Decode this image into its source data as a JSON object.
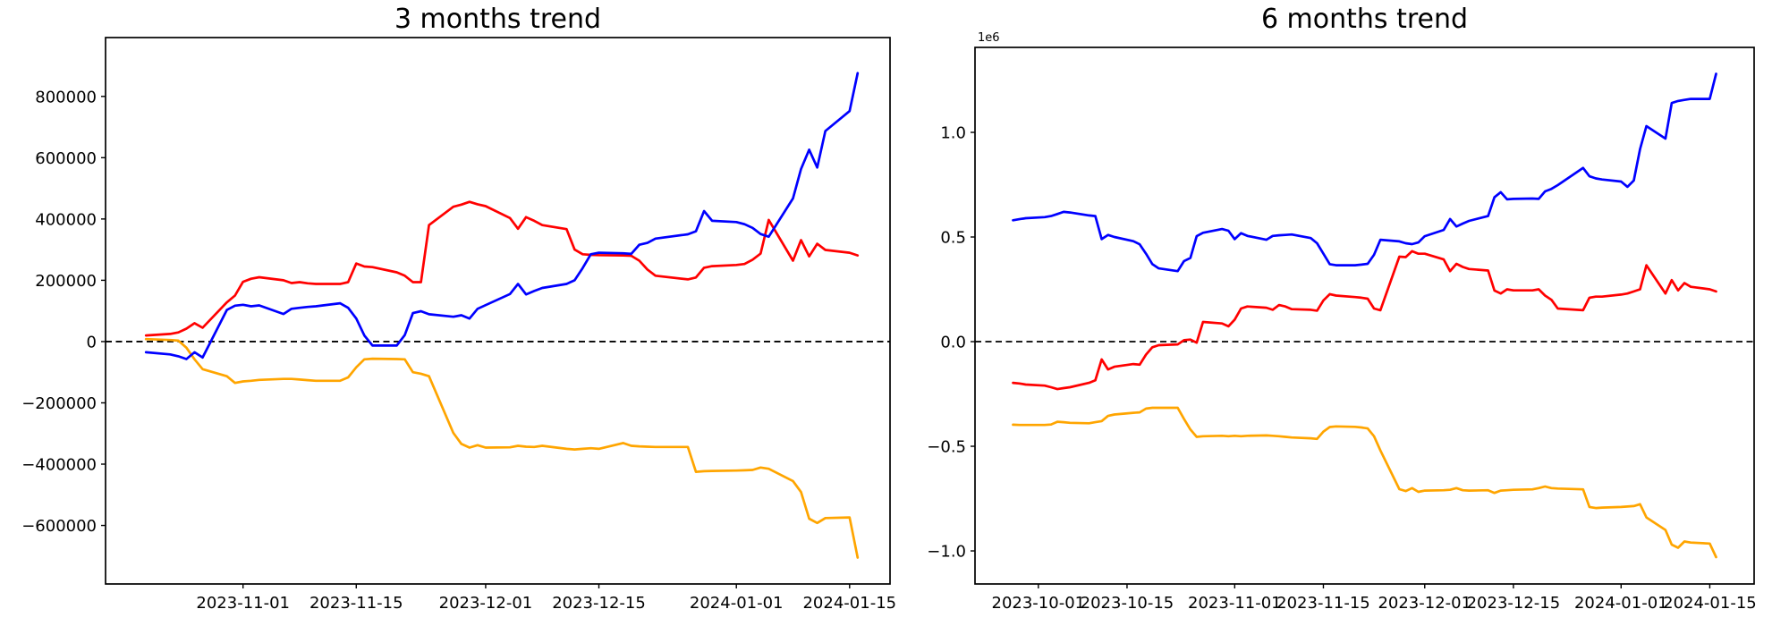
{
  "figure": {
    "background": "#ffffff"
  },
  "chart_data": [
    {
      "type": "line",
      "title": "3 months trend",
      "grid": false,
      "legend": null,
      "zero_line": {
        "style": "dashed",
        "color": "#000000",
        "value": 0
      },
      "xlim": [
        "2023-10-15",
        "2024-01-20"
      ],
      "ylim": [
        -791000,
        992000
      ],
      "x_ticks": [
        {
          "date": "2023-11-01",
          "label": "2023-11-01"
        },
        {
          "date": "2023-11-15",
          "label": "2023-11-15"
        },
        {
          "date": "2023-12-01",
          "label": "2023-12-01"
        },
        {
          "date": "2023-12-15",
          "label": "2023-12-15"
        },
        {
          "date": "2024-01-01",
          "label": "2024-01-01"
        },
        {
          "date": "2024-01-15",
          "label": "2024-01-15"
        }
      ],
      "y_ticks": [
        {
          "value": 800000,
          "label": "800000"
        },
        {
          "value": 600000,
          "label": "600000"
        },
        {
          "value": 400000,
          "label": "400000"
        },
        {
          "value": 200000,
          "label": "200000"
        },
        {
          "value": 0,
          "label": "0"
        },
        {
          "value": -200000,
          "label": "−200000"
        },
        {
          "value": -400000,
          "label": "−400000"
        },
        {
          "value": -600000,
          "label": "−600000"
        }
      ],
      "offset_label": "",
      "dates": [
        "2023-10-20",
        "2023-10-23",
        "2023-10-24",
        "2023-10-25",
        "2023-10-26",
        "2023-10-27",
        "2023-10-30",
        "2023-10-31",
        "2023-11-01",
        "2023-11-02",
        "2023-11-03",
        "2023-11-06",
        "2023-11-07",
        "2023-11-08",
        "2023-11-09",
        "2023-11-10",
        "2023-11-13",
        "2023-11-14",
        "2023-11-15",
        "2023-11-16",
        "2023-11-17",
        "2023-11-20",
        "2023-11-21",
        "2023-11-22",
        "2023-11-23",
        "2023-11-24",
        "2023-11-27",
        "2023-11-28",
        "2023-11-29",
        "2023-11-30",
        "2023-12-01",
        "2023-12-04",
        "2023-12-05",
        "2023-12-06",
        "2023-12-07",
        "2023-12-08",
        "2023-12-11",
        "2023-12-12",
        "2023-12-13",
        "2023-12-14",
        "2023-12-15",
        "2023-12-18",
        "2023-12-19",
        "2023-12-20",
        "2023-12-21",
        "2023-12-22",
        "2023-12-26",
        "2023-12-27",
        "2023-12-28",
        "2023-12-29",
        "2024-01-01",
        "2024-01-02",
        "2024-01-03",
        "2024-01-04",
        "2024-01-05",
        "2024-01-08",
        "2024-01-09",
        "2024-01-10",
        "2024-01-11",
        "2024-01-12",
        "2024-01-15",
        "2024-01-16"
      ],
      "series": [
        {
          "name": "orange",
          "color": "#ffa500",
          "values": [
            8000,
            5000,
            3000,
            -20000,
            -58000,
            -90000,
            -113000,
            -135000,
            -130000,
            -128000,
            -125000,
            -122000,
            -122000,
            -124000,
            -126000,
            -128000,
            -128000,
            -117000,
            -84000,
            -58000,
            -56000,
            -57000,
            -58000,
            -100000,
            -105000,
            -113000,
            -298000,
            -334000,
            -346000,
            -338000,
            -346000,
            -345000,
            -340000,
            -343000,
            -344000,
            -340000,
            -350000,
            -352000,
            -350000,
            -348000,
            -350000,
            -331000,
            -340000,
            -342000,
            -343000,
            -344000,
            -344000,
            -425000,
            -423000,
            -422000,
            -421000,
            -420000,
            -419000,
            -411000,
            -415000,
            -455000,
            -491000,
            -578000,
            -592000,
            -576000,
            -574000,
            -705000
          ]
        },
        {
          "name": "red",
          "color": "#ff0000",
          "values": [
            20000,
            25000,
            30000,
            42000,
            60000,
            45000,
            128000,
            150000,
            195000,
            205000,
            210000,
            200000,
            191000,
            194000,
            190000,
            188000,
            188000,
            194000,
            255000,
            245000,
            243000,
            226000,
            215000,
            194000,
            194000,
            380000,
            440000,
            447000,
            456000,
            448000,
            442000,
            403000,
            368000,
            406000,
            394000,
            380000,
            367000,
            300000,
            285000,
            283000,
            282000,
            281000,
            280000,
            264000,
            235000,
            215000,
            203000,
            209000,
            241000,
            246000,
            250000,
            253000,
            267000,
            287000,
            397000,
            264000,
            331000,
            278000,
            319000,
            299000,
            290000,
            281000
          ]
        },
        {
          "name": "blue",
          "color": "#0000ff",
          "values": [
            -35000,
            -42000,
            -48000,
            -57000,
            -35000,
            -52000,
            103000,
            117000,
            120000,
            115000,
            118000,
            90000,
            107000,
            110000,
            113000,
            115000,
            125000,
            110000,
            75000,
            20000,
            -13000,
            -13000,
            21000,
            93000,
            99000,
            89000,
            81000,
            86000,
            75000,
            107000,
            119000,
            155000,
            188000,
            154000,
            165000,
            175000,
            188000,
            200000,
            240000,
            285000,
            290000,
            288000,
            286000,
            316000,
            322000,
            336000,
            350000,
            360000,
            426000,
            394000,
            390000,
            383000,
            371000,
            351000,
            342000,
            467000,
            563000,
            626000,
            568000,
            687000,
            752000,
            876000
          ]
        }
      ]
    },
    {
      "type": "line",
      "title": "6 months trend",
      "grid": false,
      "legend": null,
      "zero_line": {
        "style": "dashed",
        "color": "#000000",
        "value": 0
      },
      "xlim": [
        "2023-09-21",
        "2024-01-22"
      ],
      "ylim": [
        -1158000,
        1406000
      ],
      "x_ticks": [
        {
          "date": "2023-10-01",
          "label": "2023-10-01"
        },
        {
          "date": "2023-10-15",
          "label": "2023-10-15"
        },
        {
          "date": "2023-11-01",
          "label": "2023-11-01"
        },
        {
          "date": "2023-11-15",
          "label": "2023-11-15"
        },
        {
          "date": "2023-12-01",
          "label": "2023-12-01"
        },
        {
          "date": "2023-12-15",
          "label": "2023-12-15"
        },
        {
          "date": "2024-01-01",
          "label": "2024-01-01"
        },
        {
          "date": "2024-01-15",
          "label": "2024-01-15"
        }
      ],
      "y_ticks": [
        {
          "value": 1000000,
          "label": "1.0"
        },
        {
          "value": 500000,
          "label": "0.5"
        },
        {
          "value": 0,
          "label": "0.0"
        },
        {
          "value": -500000,
          "label": "−0.5"
        },
        {
          "value": -1000000,
          "label": "−1.0"
        }
      ],
      "offset_label": "1e6",
      "dates": [
        "2023-09-27",
        "2023-09-28",
        "2023-09-29",
        "2023-10-02",
        "2023-10-03",
        "2023-10-04",
        "2023-10-05",
        "2023-10-06",
        "2023-10-09",
        "2023-10-10",
        "2023-10-11",
        "2023-10-12",
        "2023-10-13",
        "2023-10-16",
        "2023-10-17",
        "2023-10-18",
        "2023-10-19",
        "2023-10-20",
        "2023-10-23",
        "2023-10-24",
        "2023-10-25",
        "2023-10-26",
        "2023-10-27",
        "2023-10-30",
        "2023-10-31",
        "2023-11-01",
        "2023-11-02",
        "2023-11-03",
        "2023-11-06",
        "2023-11-07",
        "2023-11-08",
        "2023-11-09",
        "2023-11-10",
        "2023-11-13",
        "2023-11-14",
        "2023-11-15",
        "2023-11-16",
        "2023-11-17",
        "2023-11-20",
        "2023-11-21",
        "2023-11-22",
        "2023-11-23",
        "2023-11-24",
        "2023-11-27",
        "2023-11-28",
        "2023-11-29",
        "2023-11-30",
        "2023-12-01",
        "2023-12-04",
        "2023-12-05",
        "2023-12-06",
        "2023-12-07",
        "2023-12-08",
        "2023-12-11",
        "2023-12-12",
        "2023-12-13",
        "2023-12-14",
        "2023-12-15",
        "2023-12-18",
        "2023-12-19",
        "2023-12-20",
        "2023-12-21",
        "2023-12-22",
        "2023-12-26",
        "2023-12-27",
        "2023-12-28",
        "2023-12-29",
        "2024-01-01",
        "2024-01-02",
        "2024-01-03",
        "2024-01-04",
        "2024-01-05",
        "2024-01-08",
        "2024-01-09",
        "2024-01-10",
        "2024-01-11",
        "2024-01-12",
        "2024-01-15",
        "2024-01-16"
      ],
      "series": [
        {
          "name": "orange",
          "color": "#ffa500",
          "values": [
            -397000,
            -398000,
            -398000,
            -398000,
            -396000,
            -383000,
            -385000,
            -388000,
            -390000,
            -385000,
            -380000,
            -355000,
            -348000,
            -340000,
            -338000,
            -320000,
            -316000,
            -316000,
            -316000,
            -370000,
            -420000,
            -455000,
            -452000,
            -450000,
            -452000,
            -450000,
            -452000,
            -450000,
            -448000,
            -450000,
            -452000,
            -455000,
            -458000,
            -462000,
            -465000,
            -430000,
            -408000,
            -405000,
            -407000,
            -410000,
            -415000,
            -452000,
            -520000,
            -705000,
            -714000,
            -700000,
            -718000,
            -712000,
            -710000,
            -708000,
            -700000,
            -710000,
            -712000,
            -710000,
            -723000,
            -712000,
            -710000,
            -708000,
            -706000,
            -700000,
            -692000,
            -700000,
            -702000,
            -706000,
            -790000,
            -795000,
            -793000,
            -790000,
            -788000,
            -786000,
            -777000,
            -840000,
            -900000,
            -970000,
            -985000,
            -955000,
            -960000,
            -965000,
            -1030000
          ]
        },
        {
          "name": "red",
          "color": "#ff0000",
          "values": [
            -197000,
            -200000,
            -205000,
            -210000,
            -218000,
            -227000,
            -222000,
            -218000,
            -197000,
            -185000,
            -85000,
            -133000,
            -120000,
            -107000,
            -110000,
            -62000,
            -27000,
            -17000,
            -13000,
            7000,
            10000,
            -5000,
            94000,
            87000,
            73000,
            105000,
            158000,
            168000,
            162000,
            152000,
            175000,
            168000,
            155000,
            152000,
            148000,
            197000,
            227000,
            220000,
            213000,
            210000,
            205000,
            158000,
            150000,
            406000,
            404000,
            432000,
            420000,
            420000,
            393000,
            337000,
            372000,
            357000,
            347000,
            340000,
            244000,
            230000,
            250000,
            245000,
            245000,
            250000,
            220000,
            200000,
            158000,
            150000,
            210000,
            215000,
            215000,
            225000,
            230000,
            240000,
            250000,
            365000,
            230000,
            294000,
            245000,
            280000,
            262000,
            250000,
            240000
          ]
        },
        {
          "name": "blue",
          "color": "#0000ff",
          "values": [
            580000,
            585000,
            590000,
            595000,
            600000,
            610000,
            620000,
            617000,
            603000,
            600000,
            490000,
            510000,
            500000,
            480000,
            465000,
            420000,
            370000,
            350000,
            337000,
            385000,
            400000,
            504000,
            520000,
            538000,
            530000,
            490000,
            518000,
            505000,
            487000,
            505000,
            508000,
            510000,
            512000,
            495000,
            470000,
            420000,
            370000,
            365000,
            365000,
            368000,
            372000,
            415000,
            487000,
            479000,
            470000,
            466000,
            474000,
            504000,
            534000,
            586000,
            550000,
            564000,
            577000,
            600000,
            690000,
            714000,
            680000,
            682000,
            684000,
            682000,
            718000,
            730000,
            748000,
            830000,
            790000,
            780000,
            775000,
            765000,
            740000,
            770000,
            920000,
            1030000,
            970000,
            1140000,
            1150000,
            1155000,
            1160000,
            1160000,
            1280000
          ]
        }
      ]
    }
  ]
}
